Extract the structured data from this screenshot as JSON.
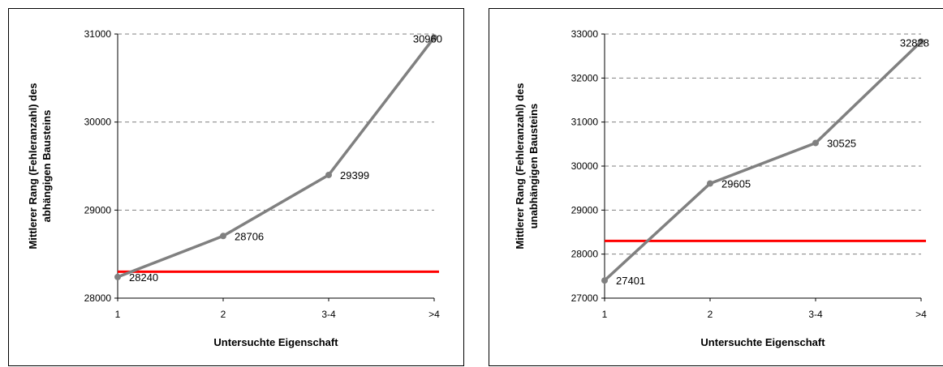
{
  "chart_data": [
    {
      "type": "line",
      "categories": [
        "1",
        "2",
        "3-4",
        ">4"
      ],
      "series": [
        {
          "values": [
            28240,
            28706,
            29399,
            30960
          ],
          "color": "#808080"
        }
      ],
      "reference_line": {
        "value": 28300,
        "color": "#ff0000"
      },
      "data_labels": [
        "28240",
        "28706",
        "29399",
        "30960"
      ],
      "xlabel": "Untersuchte Eigenschaft",
      "ylabel_lines": [
        "Mittlerer Rang (Fehleranzahl) des",
        "abhängigen Bausteins"
      ],
      "ylim": [
        28000,
        31000
      ],
      "yticks": [
        28000,
        29000,
        30000,
        31000
      ],
      "ytick_labels": [
        "28000",
        "29000",
        "30000",
        "31000"
      ],
      "grid": "horizontal dashed"
    },
    {
      "type": "line",
      "categories": [
        "1",
        "2",
        "3-4",
        ">4"
      ],
      "series": [
        {
          "values": [
            27401,
            29605,
            30525,
            32828
          ],
          "color": "#808080"
        }
      ],
      "reference_line": {
        "value": 28300,
        "color": "#ff0000"
      },
      "data_labels": [
        "27401",
        "29605",
        "30525",
        "32828"
      ],
      "xlabel": "Untersuchte Eigenschaft",
      "ylabel_lines": [
        "Mittlerer Rang (Fehleranzahl) des",
        "unabhängigen Bausteins"
      ],
      "ylim": [
        27000,
        33000
      ],
      "yticks": [
        27000,
        28000,
        29000,
        30000,
        31000,
        32000,
        33000
      ],
      "ytick_labels": [
        "27000",
        "28000",
        "29000",
        "30000",
        "31000",
        "32000",
        "33000"
      ],
      "grid": "horizontal dashed"
    }
  ]
}
